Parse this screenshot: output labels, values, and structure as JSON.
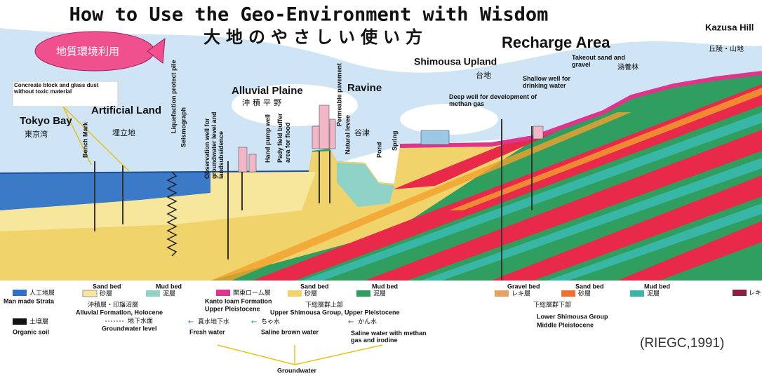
{
  "header": {
    "title": "How to Use the Geo-Environment with Wisdom",
    "subtitle": "大地のやさしい使い方"
  },
  "blimp": {
    "label": "地質環境利用"
  },
  "note": "Concreate block and glass dust without toxic material",
  "areas": [
    {
      "en": "Tokyo Bay",
      "jp": "東京湾"
    },
    {
      "en": "Artificial Land",
      "jp": "埋立地"
    },
    {
      "en": "Alluvial Plaine",
      "jp": "沖積平野"
    },
    {
      "en": "Ravine",
      "jp": "谷津"
    },
    {
      "en": "Shimousa Upland",
      "jp": "台地"
    },
    {
      "en": "Recharge Area"
    },
    {
      "en": "Kazusa Hill",
      "jp": "丘陵・山地"
    }
  ],
  "facilities": {
    "bench_mark": "Bench Mark",
    "liquefaction": "Liquefaction protect pile",
    "seismograph": "Seismograph",
    "observation_well": "Observation well for groundwater level and landsubsidence",
    "hand_pump": "Hand pump well",
    "pady_field": "Pady field buffer area for flood",
    "permeable": "Permeable pavement",
    "levee": "Natural levee",
    "pond": "Pond",
    "spring": "Spring",
    "takeout": "Takeout sand and gravel",
    "forest": "涵養林",
    "shallow_well": "Shallow well for drinking water",
    "deep_well": "Deep well for development of methan gas"
  },
  "legend": {
    "man_made": {
      "jp": "人工地層",
      "en": "Man made Strata"
    },
    "alluvial": {
      "sand_en": "Sand bed",
      "sand_jp": "砂層",
      "mud_en": "Mud bed",
      "mud_jp": "泥層",
      "group_jp": "沖積層・印旛沼層",
      "group_en": "Alluvial Formation, Holocene"
    },
    "kanto": {
      "jp": "関東ローム層",
      "en": "Kanto loam Formation",
      "age": "Upper Pleistocene"
    },
    "upper": {
      "sand_en": "Sand bed",
      "sand_jp": "砂層",
      "mud_en": "Mud bed",
      "mud_jp": "泥層",
      "group_jp": "下総層群上部",
      "group_en": "Upper Shimousa Group, Upper Pleistocene"
    },
    "lower": {
      "gravel_en": "Gravel bed",
      "gravel_jp": "レキ層",
      "sand_en": "Sand bed",
      "sand_jp": "砂層",
      "mud_en": "Mud bed",
      "mud_jp": "泥層",
      "group_jp": "下総層群下部",
      "group_en": "Lower Shimousa Group",
      "age": "Middle Pleistocene"
    },
    "extra": "レキ",
    "soil": {
      "jp": "土壌層",
      "en": "Organic soil"
    },
    "gw_level": {
      "jp": "地下水面",
      "en": "Groundwater level"
    },
    "fresh": {
      "jp": "真水地下水",
      "en": "Fresh water"
    },
    "brown": {
      "jp": "ちゃ水",
      "en": "Saline brown water"
    },
    "saline": {
      "jp": "かん水",
      "en": "Saline water with methan gas and irodine"
    },
    "groundwater": "Groundwater"
  },
  "citation": "(RIEGC,1991)"
}
